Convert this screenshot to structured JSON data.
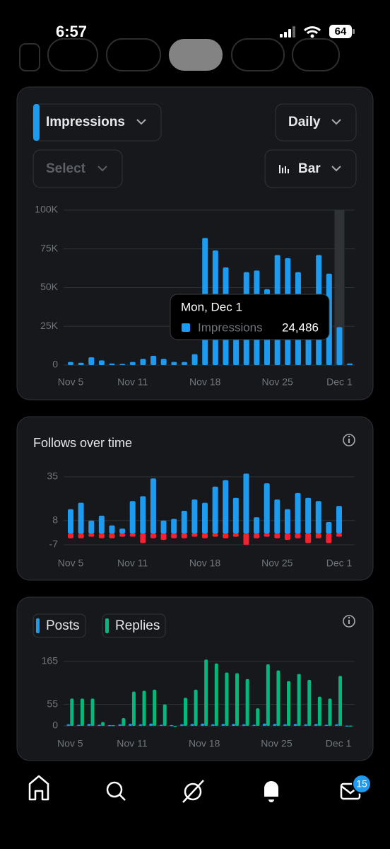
{
  "status_bar": {
    "time": "6:57",
    "battery": 64
  },
  "impressions_card": {
    "metric": "Impressions",
    "interval": "Daily",
    "compare": "Select",
    "chart_style": "Bar",
    "chart_data": {
      "type": "bar",
      "categories": [
        "Nov 5",
        null,
        null,
        null,
        null,
        null,
        "Nov 11",
        null,
        null,
        null,
        null,
        null,
        null,
        "Nov 18",
        null,
        null,
        null,
        null,
        null,
        null,
        "Nov 25",
        null,
        null,
        null,
        null,
        null,
        "Dec 1",
        null
      ],
      "series": [
        {
          "name": "Impressions",
          "color": "#1d9bf0",
          "values": [
            2000,
            1500,
            5000,
            3000,
            1000,
            800,
            2000,
            4000,
            6000,
            4000,
            2000,
            2000,
            7000,
            82000,
            74000,
            63000,
            40000,
            60000,
            61000,
            49000,
            71000,
            69000,
            60000,
            40000,
            71000,
            59000,
            24486,
            1000
          ]
        }
      ],
      "ylim": [
        0,
        100000
      ],
      "yticks": [
        0,
        {
          "value": 25000,
          "label": "25K"
        },
        {
          "value": 50000,
          "label": "50K"
        },
        {
          "value": 75000,
          "label": "75K"
        },
        {
          "value": 100000,
          "label": "100K"
        }
      ],
      "grid": true,
      "tooltip": {
        "title": "Mon, Dec 1",
        "value": {
          "value": 24486,
          "label": "24,486"
        }
      }
    }
  },
  "follows_card": {
    "chart_data": {
      "type": "bar",
      "title": "Follows over time",
      "categories": [
        "Nov 5",
        null,
        null,
        null,
        null,
        null,
        "Nov 11",
        null,
        null,
        null,
        null,
        null,
        null,
        "Nov 18",
        null,
        null,
        null,
        null,
        null,
        null,
        "Nov 25",
        null,
        null,
        null,
        null,
        null,
        "Dec 1"
      ],
      "series": [
        {
          "color": "#1d9bf0",
          "values": [
            15,
            19,
            8,
            11,
            5,
            3,
            20,
            23,
            34,
            8,
            9,
            14,
            21,
            19,
            29,
            33,
            22,
            37,
            10,
            31,
            21,
            15,
            25,
            22,
            20,
            7,
            17
          ]
        },
        {
          "color": "#f4212e",
          "values": [
            -3,
            -3,
            -2,
            -3,
            -3,
            -2,
            -2,
            -6,
            -3,
            -4,
            -3,
            -3,
            -2,
            -3,
            -2,
            -3,
            -2,
            -7,
            -3,
            -2,
            -3,
            -4,
            -3,
            -6,
            -3,
            -6,
            -2
          ]
        }
      ],
      "ylim": [
        -7,
        35
      ],
      "yticks": [
        -7,
        8,
        35
      ],
      "grid": true
    }
  },
  "activity_card": {
    "chart_data": {
      "type": "bar",
      "categories": [
        "Nov 5",
        null,
        null,
        null,
        null,
        null,
        "Nov 11",
        null,
        null,
        null,
        null,
        null,
        null,
        "Nov 18",
        null,
        null,
        null,
        null,
        null,
        null,
        "Nov 25",
        null,
        null,
        null,
        null,
        null,
        "Dec 1",
        null
      ],
      "series": [
        {
          "name": "Posts",
          "color": "#1d9bf0",
          "values": [
            4,
            3,
            5,
            3,
            2,
            4,
            5,
            4,
            6,
            3,
            2,
            4,
            5,
            6,
            4,
            5,
            5,
            4,
            3,
            6,
            5,
            4,
            5,
            4,
            5,
            3,
            4,
            1
          ]
        },
        {
          "name": "Replies",
          "color": "#00ba7c",
          "values": [
            70,
            70,
            70,
            10,
            2,
            20,
            88,
            90,
            93,
            55,
            0,
            72,
            93,
            170,
            160,
            137,
            135,
            120,
            45,
            158,
            142,
            115,
            133,
            118,
            75,
            70,
            128,
            1
          ]
        }
      ],
      "ylim": [
        0,
        165
      ],
      "yticks": [
        0,
        55,
        165
      ],
      "grid": true
    }
  },
  "nav": {
    "badge": 15
  }
}
